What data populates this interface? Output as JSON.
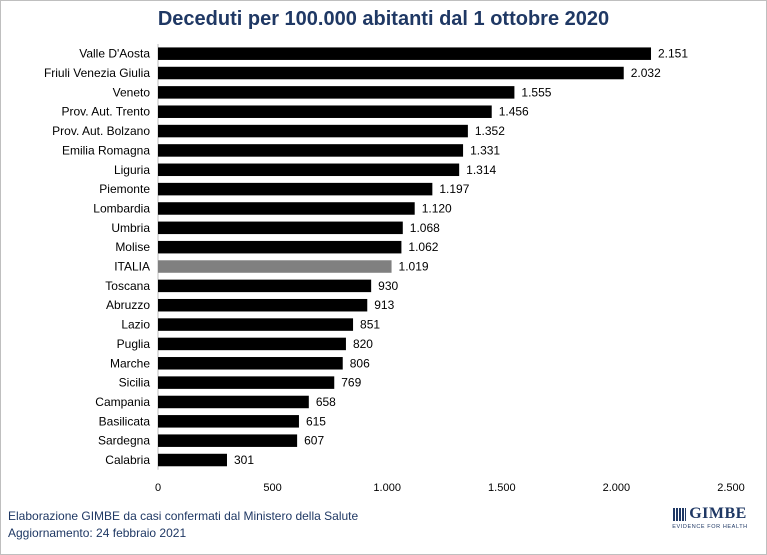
{
  "title": "Deceduti per 100.000 abitanti dal 1 ottobre 2020",
  "footer": {
    "line1": "Elaborazione GIMBE da casi confermati dal Ministero della Salute",
    "line2": "Aggiornamento: 24 febbraio 2021"
  },
  "logo": {
    "word": "GIMBE",
    "tagline": "EVIDENCE FOR HEALTH"
  },
  "colors": {
    "bar": "#000000",
    "highlight": "#808080",
    "title": "#1f3864"
  },
  "chart_data": {
    "type": "bar",
    "orientation": "horizontal",
    "title": "Deceduti per 100.000 abitanti dal 1 ottobre 2020",
    "categories": [
      "Valle D'Aosta",
      "Friuli Venezia Giulia",
      "Veneto",
      "Prov. Aut. Trento",
      "Prov. Aut. Bolzano",
      "Emilia Romagna",
      "Liguria",
      "Piemonte",
      "Lombardia",
      "Umbria",
      "Molise",
      "ITALIA",
      "Toscana",
      "Abruzzo",
      "Lazio",
      "Puglia",
      "Marche",
      "Sicilia",
      "Campania",
      "Basilicata",
      "Sardegna",
      "Calabria"
    ],
    "values": [
      2151,
      2032,
      1555,
      1456,
      1352,
      1331,
      1314,
      1197,
      1120,
      1068,
      1062,
      1019,
      930,
      913,
      851,
      820,
      806,
      769,
      658,
      615,
      607,
      301
    ],
    "value_labels": [
      "2.151",
      "2.032",
      "1.555",
      "1.456",
      "1.352",
      "1.331",
      "1.314",
      "1.197",
      "1.120",
      "1.068",
      "1.062",
      "1.019",
      "930",
      "913",
      "851",
      "820",
      "806",
      "769",
      "658",
      "615",
      "607",
      "301"
    ],
    "highlight_category": "ITALIA",
    "xlim": [
      0,
      2500
    ],
    "x_ticks": [
      0,
      500,
      1000,
      1500,
      2000,
      2500
    ],
    "x_tick_labels": [
      "0",
      "500",
      "1.000",
      "1.500",
      "2.000",
      "2.500"
    ],
    "grid": false,
    "legend": "none"
  }
}
